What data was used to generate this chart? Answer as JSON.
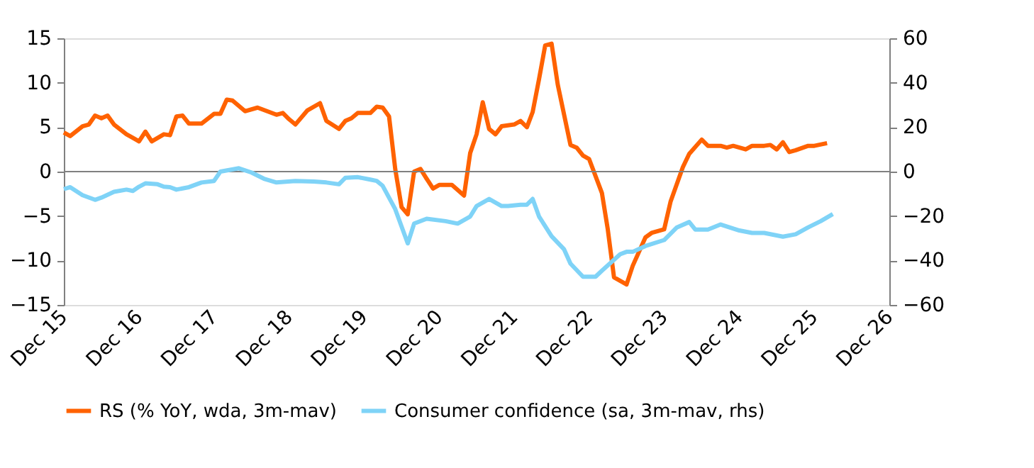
{
  "chart_data": {
    "type": "line",
    "xlim": [
      "2015-12",
      "2026-12"
    ],
    "xticks": [
      {
        "value": "2015-12",
        "label": "Dec 15"
      },
      {
        "value": "2016-12",
        "label": "Dec 16"
      },
      {
        "value": "2017-12",
        "label": "Dec 17"
      },
      {
        "value": "2018-12",
        "label": "Dec 18"
      },
      {
        "value": "2019-12",
        "label": "Dec 19"
      },
      {
        "value": "2020-12",
        "label": "Dec 20"
      },
      {
        "value": "2021-12",
        "label": "Dec 21"
      },
      {
        "value": "2022-12",
        "label": "Dec 22"
      },
      {
        "value": "2023-12",
        "label": "Dec 23"
      },
      {
        "value": "2024-12",
        "label": "Dec 24"
      },
      {
        "value": "2025-12",
        "label": "Dec 25"
      },
      {
        "value": "2026-12",
        "label": "Dec 26"
      }
    ],
    "ylim": [
      -15,
      15
    ],
    "yticks": [
      -15,
      -10,
      -5,
      0,
      5,
      10,
      15
    ],
    "y2lim": [
      -60,
      60
    ],
    "y2ticks": [
      -60,
      -40,
      -20,
      0,
      20,
      40,
      60
    ],
    "grid": false,
    "legend": "bottom",
    "line_style": "solid",
    "marker": "none",
    "ref_lines": [
      {
        "axis": "y",
        "value": 0,
        "color": "#808080"
      }
    ],
    "series": [
      {
        "name": "RS (% YoY, wda, 3m-mav)",
        "color": "#ff6200",
        "x": [
          "2015-12",
          "2016-01",
          "2016-03",
          "2016-04",
          "2016-05",
          "2016-06",
          "2016-07",
          "2016-08",
          "2016-10",
          "2016-11",
          "2016-12",
          "2017-01",
          "2017-02",
          "2017-04",
          "2017-05",
          "2017-06",
          "2017-07",
          "2017-08",
          "2017-10",
          "2017-12",
          "2018-01",
          "2018-02",
          "2018-03",
          "2018-05",
          "2018-07",
          "2018-10",
          "2018-11",
          "2018-12",
          "2019-01",
          "2019-03",
          "2019-05",
          "2019-06",
          "2019-08",
          "2019-09",
          "2019-10",
          "2019-11",
          "2020-01",
          "2020-02",
          "2020-03",
          "2020-04",
          "2020-05",
          "2020-06",
          "2020-07",
          "2020-08",
          "2020-09",
          "2020-10",
          "2020-11",
          "2020-12",
          "2021-02",
          "2021-04",
          "2021-05",
          "2021-06",
          "2021-07",
          "2021-08",
          "2021-09",
          "2021-10",
          "2021-12",
          "2022-01",
          "2022-02",
          "2022-03",
          "2022-04",
          "2022-05",
          "2022-06",
          "2022-07",
          "2022-09",
          "2022-10",
          "2022-11",
          "2022-12",
          "2023-02",
          "2023-03",
          "2023-04",
          "2023-06",
          "2023-07",
          "2023-09",
          "2023-10",
          "2023-12",
          "2024-01",
          "2024-03",
          "2024-04",
          "2024-06",
          "2024-07",
          "2024-09",
          "2024-10",
          "2024-11",
          "2025-01",
          "2025-02",
          "2025-04",
          "2025-05",
          "2025-06",
          "2025-07",
          "2025-08",
          "2025-09",
          "2025-11",
          "2025-12",
          "2026-02"
        ],
        "values": [
          4.4,
          4.0,
          5.1,
          5.3,
          6.3,
          6.0,
          6.3,
          5.3,
          4.2,
          3.8,
          3.4,
          4.5,
          3.4,
          4.2,
          4.1,
          6.2,
          6.3,
          5.4,
          5.4,
          6.5,
          6.5,
          8.1,
          8.0,
          6.8,
          7.2,
          6.4,
          6.6,
          5.9,
          5.3,
          6.9,
          7.7,
          5.7,
          4.8,
          5.7,
          6.0,
          6.6,
          6.6,
          7.3,
          7.2,
          6.2,
          0.3,
          -4.0,
          -4.8,
          0.0,
          0.3,
          -0.8,
          -1.9,
          -1.5,
          -1.5,
          -2.7,
          2.1,
          4.2,
          7.8,
          4.8,
          4.2,
          5.1,
          5.3,
          5.7,
          5.0,
          6.7,
          10.4,
          14.2,
          14.4,
          9.8,
          3.0,
          2.7,
          1.8,
          1.4,
          -2.4,
          -6.4,
          -11.9,
          -12.7,
          -10.6,
          -7.4,
          -6.9,
          -6.5,
          -3.4,
          0.5,
          2.0,
          3.6,
          2.9,
          2.9,
          2.7,
          2.9,
          2.5,
          2.9,
          2.9,
          3.0,
          2.5,
          3.3,
          2.2,
          2.4,
          2.9,
          2.9,
          3.2
        ]
      },
      {
        "name": "Consumer confidence (sa, 3m-mav, rhs)",
        "color": "#7fd3f7",
        "axis": "y2",
        "x": [
          "2015-12",
          "2016-01",
          "2016-03",
          "2016-05",
          "2016-06",
          "2016-08",
          "2016-10",
          "2016-11",
          "2016-12",
          "2017-01",
          "2017-03",
          "2017-04",
          "2017-05",
          "2017-06",
          "2017-08",
          "2017-10",
          "2017-12",
          "2018-01",
          "2018-04",
          "2018-06",
          "2018-08",
          "2018-10",
          "2019-01",
          "2019-04",
          "2019-06",
          "2019-08",
          "2019-09",
          "2019-11",
          "2020-01",
          "2020-02",
          "2020-03",
          "2020-05",
          "2020-07",
          "2020-08",
          "2020-10",
          "2021-01",
          "2021-03",
          "2021-05",
          "2021-06",
          "2021-08",
          "2021-10",
          "2021-11",
          "2022-01",
          "2022-02",
          "2022-03",
          "2022-04",
          "2022-06",
          "2022-08",
          "2022-09",
          "2022-11",
          "2023-01",
          "2023-02",
          "2023-05",
          "2023-06",
          "2023-07",
          "2023-09",
          "2023-12",
          "2024-02",
          "2024-04",
          "2024-05",
          "2024-07",
          "2024-09",
          "2024-12",
          "2025-02",
          "2025-04",
          "2025-07",
          "2025-09",
          "2025-11",
          "2026-01",
          "2026-03"
        ],
        "values": [
          -7.9,
          -7.0,
          -10.6,
          -12.7,
          -11.7,
          -9.1,
          -8.1,
          -8.7,
          -6.8,
          -5.3,
          -5.7,
          -6.8,
          -7.0,
          -8.1,
          -7.0,
          -4.9,
          -4.2,
          0,
          1.5,
          -0.4,
          -3.2,
          -4.9,
          -4.2,
          -4.5,
          -4.9,
          -5.7,
          -2.8,
          -2.5,
          -3.6,
          -4.2,
          -6.4,
          -16.9,
          -32.3,
          -23.4,
          -21.2,
          -22.3,
          -23.4,
          -20.2,
          -15.5,
          -12.3,
          -15.5,
          -15.5,
          -14.9,
          -14.9,
          -12.3,
          -20.2,
          -29.1,
          -35.0,
          -41.4,
          -47.3,
          -47.3,
          -44.6,
          -37.2,
          -36.1,
          -36.1,
          -33.5,
          -30.8,
          -25.1,
          -22.7,
          -26.1,
          -26.1,
          -23.8,
          -26.5,
          -27.6,
          -27.6,
          -29.3,
          -28.2,
          -25.1,
          -22.3,
          -19.1
        ]
      }
    ]
  }
}
